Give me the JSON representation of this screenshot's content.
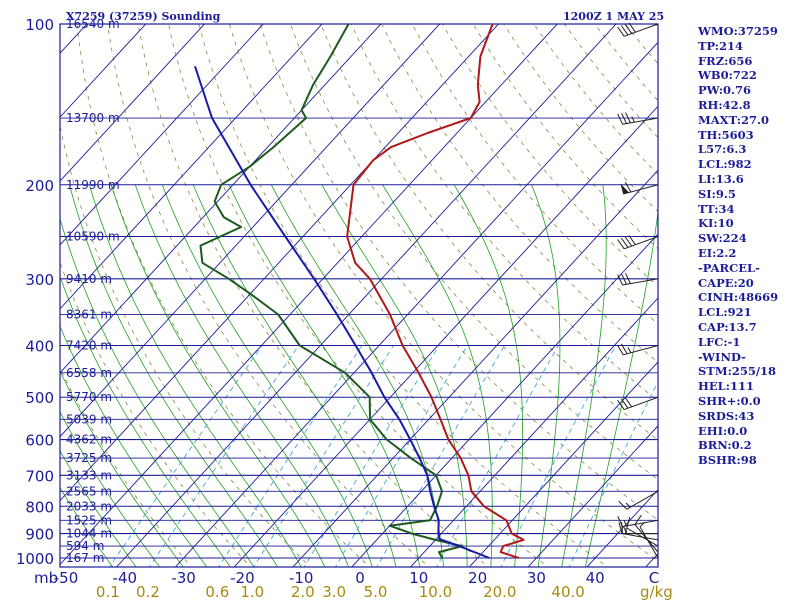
{
  "header": {
    "station": "X7259 (37259) Sounding",
    "time": "1200Z  1 MAY 25"
  },
  "colors": {
    "frame": "#1c1c98",
    "isobar": "#1c1c98",
    "isotherm": "#1c1c98",
    "dry_adiabat": "#8a8a40",
    "moist_adiabat": "#20a020",
    "mixing_ratio": "#40a8d8",
    "temperature": "#b01818",
    "dewpoint": "#1e5a1e",
    "parcel": "#1a1aa8",
    "wind": "#202020",
    "mixing_label": "#a88a10"
  },
  "indices": [
    "WMO:37259",
    "TP:214",
    "FRZ:656",
    "WB0:722",
    "PW:0.76",
    "RH:42.8",
    "MAXT:27.0",
    "TH:5603",
    "L57:6.3",
    "LCL:982",
    "LI:13.6",
    "SI:9.5",
    "TT:34",
    "KI:10",
    "SW:224",
    "EI:2.2",
    "-PARCEL-",
    "CAPE:20",
    "CINH:48669",
    "LCL:921",
    "CAP:13.7",
    "LFC:-1",
    "-WIND-",
    "STM:255/18",
    "HEL:111",
    "SHR+:0.0",
    "SRDS:43",
    "EHI:0.0",
    "BRN:0.2",
    "BSHR:98"
  ],
  "chart_data": {
    "type": "line",
    "title": "X7259 (37259) Sounding",
    "subtitle": "1200Z  1 MAY 25",
    "xlabel": "",
    "ylabel": "mb",
    "x_unit": "°C",
    "xlim": [
      -50,
      50
    ],
    "ylim": [
      1000,
      100
    ],
    "log_scale_y": true,
    "grid": true,
    "x_ticks": [
      "-50",
      "-40",
      "-30",
      "-20",
      "-10",
      "0",
      "10",
      "20",
      "30",
      "40",
      "C"
    ],
    "pressure_labels": [
      {
        "p": 100,
        "label": "100"
      },
      {
        "p": 200,
        "label": "200"
      },
      {
        "p": 300,
        "label": "300"
      },
      {
        "p": 400,
        "label": "400"
      },
      {
        "p": 500,
        "label": "500"
      },
      {
        "p": 600,
        "label": "600"
      },
      {
        "p": 700,
        "label": "700"
      },
      {
        "p": 800,
        "label": "800"
      },
      {
        "p": 900,
        "label": "900"
      },
      {
        "p": 1000,
        "label": "1000"
      }
    ],
    "height_labels": [
      {
        "p": 100,
        "label": "16540 m"
      },
      {
        "p": 150,
        "label": "13700 m"
      },
      {
        "p": 200,
        "label": "11990 m"
      },
      {
        "p": 250,
        "label": "10590 m"
      },
      {
        "p": 300,
        "label": "9410 m"
      },
      {
        "p": 350,
        "label": "8361 m"
      },
      {
        "p": 400,
        "label": "7420 m"
      },
      {
        "p": 450,
        "label": "6558 m"
      },
      {
        "p": 500,
        "label": "5770 m"
      },
      {
        "p": 550,
        "label": "5039 m"
      },
      {
        "p": 600,
        "label": "4362 m"
      },
      {
        "p": 650,
        "label": "3725 m"
      },
      {
        "p": 700,
        "label": "3133 m"
      },
      {
        "p": 750,
        "label": "2565 m"
      },
      {
        "p": 800,
        "label": "2033 m"
      },
      {
        "p": 850,
        "label": "1525 m"
      },
      {
        "p": 900,
        "label": "1044 m"
      },
      {
        "p": 950,
        "label": "594 m"
      },
      {
        "p": 1000,
        "label": "167 m"
      }
    ],
    "mixing_ratio_labels": [
      {
        "w": 0.1,
        "label": "0.1"
      },
      {
        "w": 0.2,
        "label": "0.2"
      },
      {
        "w": 0.6,
        "label": "0.6"
      },
      {
        "w": 1.0,
        "label": "1.0"
      },
      {
        "w": 2.0,
        "label": "2.0"
      },
      {
        "w": 3.0,
        "label": "3.0"
      },
      {
        "w": 5.0,
        "label": "5.0"
      },
      {
        "w": 10.0,
        "label": "10.0"
      },
      {
        "w": 20.0,
        "label": "20.0"
      },
      {
        "w": 40.0,
        "label": "40.0"
      }
    ],
    "mixing_ratio_unit": "g/kg",
    "series": [
      {
        "name": "Temperature",
        "points": [
          [
            1000,
            27.0
          ],
          [
            975,
            23.0
          ],
          [
            950,
            22.5
          ],
          [
            925,
            25.0
          ],
          [
            900,
            22.0
          ],
          [
            850,
            19.0
          ],
          [
            800,
            13.0
          ],
          [
            750,
            8.5
          ],
          [
            700,
            5.5
          ],
          [
            650,
            1.5
          ],
          [
            600,
            -3.5
          ],
          [
            550,
            -8.0
          ],
          [
            500,
            -13.0
          ],
          [
            450,
            -19.0
          ],
          [
            400,
            -26.0
          ],
          [
            350,
            -33.0
          ],
          [
            300,
            -42.0
          ],
          [
            280,
            -47.0
          ],
          [
            250,
            -52.5
          ],
          [
            220,
            -56.5
          ],
          [
            200,
            -59.5
          ],
          [
            180,
            -60.0
          ],
          [
            170,
            -59.0
          ],
          [
            160,
            -55.0
          ],
          [
            150,
            -50.0
          ],
          [
            140,
            -51.0
          ],
          [
            130,
            -54.0
          ],
          [
            115,
            -58.0
          ],
          [
            100,
            -61.0
          ]
        ]
      },
      {
        "name": "Dewpoint",
        "points": [
          [
            1000,
            14.0
          ],
          [
            975,
            12.5
          ],
          [
            950,
            15.5
          ],
          [
            925,
            10.0
          ],
          [
            900,
            5.0
          ],
          [
            870,
            0.0
          ],
          [
            850,
            6.0
          ],
          [
            800,
            5.0
          ],
          [
            750,
            3.5
          ],
          [
            700,
            0.0
          ],
          [
            650,
            -7.0
          ],
          [
            600,
            -14.0
          ],
          [
            550,
            -20.0
          ],
          [
            500,
            -23.5
          ],
          [
            450,
            -31.5
          ],
          [
            400,
            -43.5
          ],
          [
            350,
            -52.0
          ],
          [
            320,
            -60.0
          ],
          [
            300,
            -66.0
          ],
          [
            280,
            -73.0
          ],
          [
            260,
            -76.0
          ],
          [
            240,
            -72.0
          ],
          [
            230,
            -76.5
          ],
          [
            215,
            -80.5
          ],
          [
            200,
            -82.0
          ],
          [
            185,
            -80.0
          ],
          [
            170,
            -79.0
          ],
          [
            150,
            -78.0
          ],
          [
            145,
            -80.0
          ],
          [
            130,
            -82.0
          ],
          [
            115,
            -83.5
          ],
          [
            100,
            -85.5
          ]
        ]
      },
      {
        "name": "Parcel",
        "points": [
          [
            1000,
            22.0
          ],
          [
            950,
            15.0
          ],
          [
            921,
            10.5
          ],
          [
            900,
            9.5
          ],
          [
            850,
            7.5
          ],
          [
            800,
            4.5
          ],
          [
            750,
            1.5
          ],
          [
            700,
            -1.5
          ],
          [
            650,
            -5.5
          ],
          [
            600,
            -10.0
          ],
          [
            550,
            -15.0
          ],
          [
            500,
            -21.0
          ],
          [
            450,
            -27.0
          ],
          [
            400,
            -34.0
          ],
          [
            350,
            -42.0
          ],
          [
            300,
            -51.5
          ],
          [
            250,
            -63.0
          ],
          [
            200,
            -77.0
          ],
          [
            150,
            -94.0
          ],
          [
            120,
            -105.0
          ]
        ]
      }
    ],
    "wind_barbs": [
      {
        "p": 1000,
        "dir": 330,
        "spd": 5
      },
      {
        "p": 975,
        "dir": 320,
        "spd": 10
      },
      {
        "p": 950,
        "dir": 300,
        "spd": 10
      },
      {
        "p": 925,
        "dir": 280,
        "spd": 15
      },
      {
        "p": 900,
        "dir": 270,
        "spd": 15
      },
      {
        "p": 850,
        "dir": 260,
        "spd": 15
      },
      {
        "p": 750,
        "dir": 240,
        "spd": 15
      },
      {
        "p": 500,
        "dir": 250,
        "spd": 30
      },
      {
        "p": 400,
        "dir": 255,
        "spd": 25
      },
      {
        "p": 300,
        "dir": 260,
        "spd": 30
      },
      {
        "p": 250,
        "dir": 250,
        "spd": 40
      },
      {
        "p": 200,
        "dir": 255,
        "spd": 60
      },
      {
        "p": 150,
        "dir": 260,
        "spd": 35
      },
      {
        "p": 100,
        "dir": 250,
        "spd": 40
      }
    ]
  }
}
